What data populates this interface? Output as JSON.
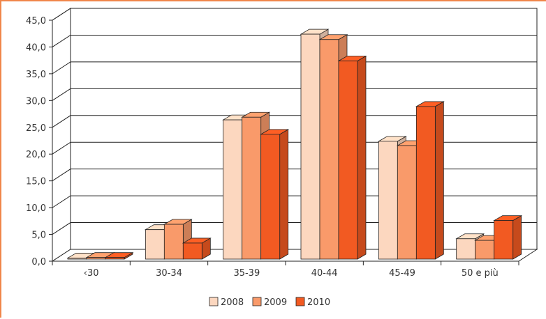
{
  "chart_data": {
    "type": "bar",
    "categories": [
      "‹30",
      "30-34",
      "35-39",
      "40-44",
      "45-49",
      "50 e più"
    ],
    "series": [
      {
        "name": "2008",
        "color": "#fcd7bf",
        "values": [
          0.2,
          5.5,
          26.0,
          42.0,
          22.0,
          3.8
        ]
      },
      {
        "name": "2009",
        "color": "#f99a6a",
        "values": [
          0.3,
          6.5,
          26.5,
          41.0,
          21.2,
          3.5
        ]
      },
      {
        "name": "2010",
        "color": "#f25a22",
        "values": [
          0.3,
          3.0,
          23.3,
          37.0,
          28.5,
          7.2
        ]
      }
    ],
    "ylim": [
      0,
      45
    ],
    "yticks": [
      "0,0",
      "5,0",
      "10,0",
      "15,0",
      "20,0",
      "25,0",
      "30,0",
      "35,0",
      "40,0",
      "45,0"
    ],
    "grid": true,
    "legend_position": "bottom"
  }
}
